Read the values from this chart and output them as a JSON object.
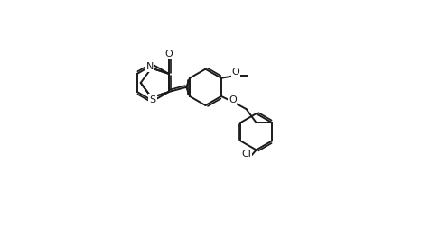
{
  "bg_color": "#ffffff",
  "line_color": "#1a1a1a",
  "line_width": 1.4,
  "figsize": [
    4.76,
    2.62
  ],
  "dpi": 100,
  "xlim": [
    0,
    10.5
  ],
  "ylim": [
    -4.5,
    5.5
  ],
  "labels": {
    "N1": [
      3.62,
      3.05,
      "N"
    ],
    "N2": [
      3.05,
      1.62,
      "N"
    ],
    "S": [
      5.1,
      2.12,
      "S"
    ],
    "O": [
      4.58,
      4.8,
      "O"
    ],
    "O2": [
      7.62,
      2.28,
      "O"
    ],
    "O3": [
      7.05,
      0.85,
      "O"
    ],
    "Cl": [
      8.85,
      -2.7,
      "Cl"
    ]
  },
  "label_fontsize": 8.5,
  "methoxy_text": "O",
  "methoxy_label": [
    8.8,
    2.58,
    "O"
  ]
}
